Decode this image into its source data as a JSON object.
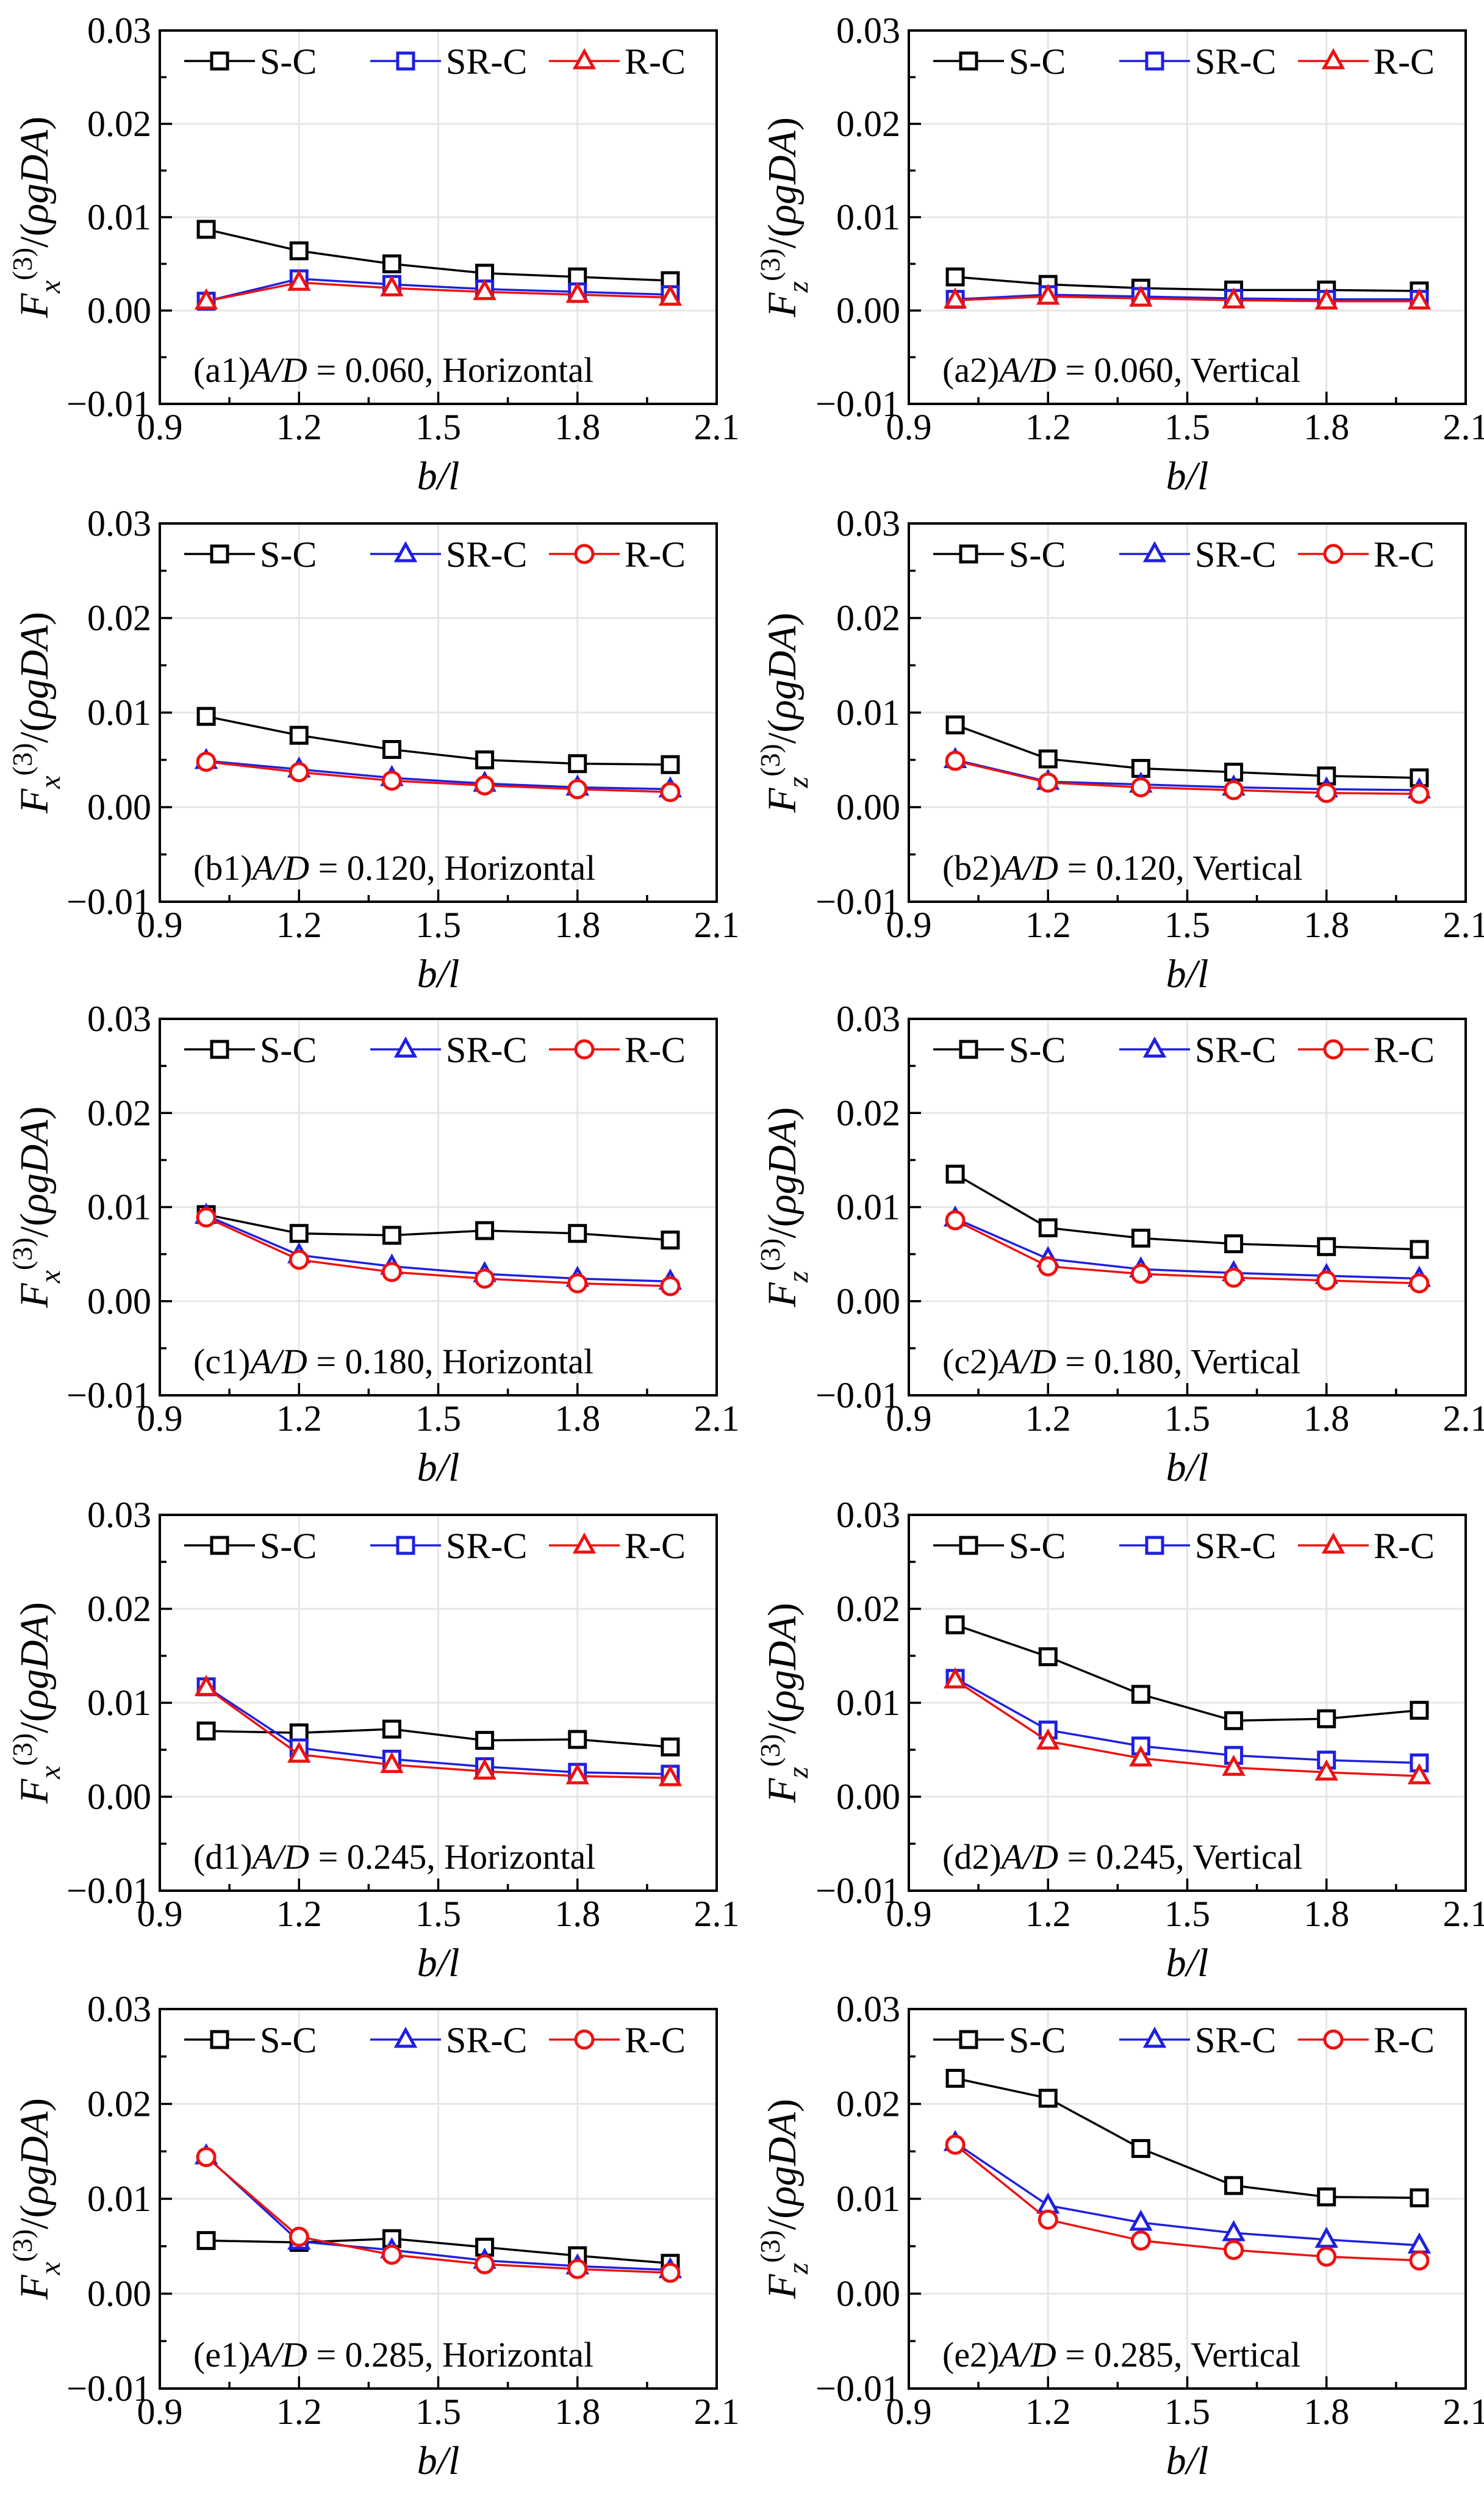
{
  "figure": {
    "x_axis_label": "b/l",
    "y_axis_label_fx": "Fx(3)/(ρgDA)",
    "y_axis_label_fz": "Fz(3)/(ρgDA)",
    "colors": {
      "S-C": "#000000",
      "SR-C": "#1f1fe0",
      "R-C": "#ee1111"
    }
  },
  "chart_data": [
    {
      "id": "a1",
      "type": "line",
      "component": "x",
      "panel_label": "(a1)",
      "amplitude_ratio": "A/D = 0.060",
      "direction": "Horizontal",
      "categories": [
        1.0,
        1.2,
        1.4,
        1.6,
        1.8,
        2.0
      ],
      "xlim": [
        0.9,
        2.1
      ],
      "xticks": [
        "0.9",
        "1.2",
        "1.5",
        "1.8",
        "2.1"
      ],
      "ylim": [
        -0.01,
        0.03
      ],
      "yticks": [
        "−0.01",
        "0.00",
        "0.01",
        "0.02",
        "0.03"
      ],
      "series": [
        {
          "name": "S-C",
          "marker": "square",
          "values": [
            0.0087,
            0.0064,
            0.005,
            0.004,
            0.0036,
            0.0032
          ]
        },
        {
          "name": "SR-C",
          "marker": "square",
          "values": [
            0.001,
            0.0034,
            0.0028,
            0.0023,
            0.002,
            0.0017
          ]
        },
        {
          "name": "R-C",
          "marker": "triangle",
          "values": [
            0.001,
            0.003,
            0.0024,
            0.002,
            0.0017,
            0.0014
          ]
        }
      ]
    },
    {
      "id": "a2",
      "type": "line",
      "component": "z",
      "panel_label": "(a2)",
      "amplitude_ratio": "A/D = 0.060",
      "direction": "Vertical",
      "categories": [
        1.0,
        1.2,
        1.4,
        1.6,
        1.8,
        2.0
      ],
      "xlim": [
        0.9,
        2.1
      ],
      "xticks": [
        "0.9",
        "1.2",
        "1.5",
        "1.8",
        "2.1"
      ],
      "ylim": [
        -0.01,
        0.03
      ],
      "yticks": [
        "−0.01",
        "0.00",
        "0.01",
        "0.02",
        "0.03"
      ],
      "series": [
        {
          "name": "S-C",
          "marker": "square",
          "values": [
            0.0036,
            0.0028,
            0.0024,
            0.0022,
            0.0022,
            0.0021
          ]
        },
        {
          "name": "SR-C",
          "marker": "square",
          "values": [
            0.0012,
            0.0017,
            0.0015,
            0.0013,
            0.0012,
            0.0012
          ]
        },
        {
          "name": "R-C",
          "marker": "triangle",
          "values": [
            0.0011,
            0.0015,
            0.0013,
            0.0011,
            0.001,
            0.001
          ]
        }
      ]
    },
    {
      "id": "b1",
      "type": "line",
      "component": "x",
      "panel_label": "(b1)",
      "amplitude_ratio": "A/D = 0.120",
      "direction": "Horizontal",
      "categories": [
        1.0,
        1.2,
        1.4,
        1.6,
        1.8,
        2.0
      ],
      "xlim": [
        0.9,
        2.1
      ],
      "xticks": [
        "0.9",
        "1.2",
        "1.5",
        "1.8",
        "2.1"
      ],
      "ylim": [
        -0.01,
        0.03
      ],
      "yticks": [
        "−0.01",
        "0.00",
        "0.01",
        "0.02",
        "0.03"
      ],
      "series": [
        {
          "name": "S-C",
          "marker": "square",
          "values": [
            0.0096,
            0.0076,
            0.0061,
            0.005,
            0.0046,
            0.0045
          ]
        },
        {
          "name": "SR-C",
          "marker": "triangle",
          "values": [
            0.0049,
            0.004,
            0.0031,
            0.0025,
            0.0021,
            0.0019
          ]
        },
        {
          "name": "R-C",
          "marker": "circle",
          "values": [
            0.0048,
            0.0037,
            0.0028,
            0.0023,
            0.0019,
            0.0016
          ]
        }
      ]
    },
    {
      "id": "b2",
      "type": "line",
      "component": "z",
      "panel_label": "(b2)",
      "amplitude_ratio": "A/D = 0.120",
      "direction": "Vertical",
      "categories": [
        1.0,
        1.2,
        1.4,
        1.6,
        1.8,
        2.0
      ],
      "xlim": [
        0.9,
        2.1
      ],
      "xticks": [
        "0.9",
        "1.2",
        "1.5",
        "1.8",
        "2.1"
      ],
      "ylim": [
        -0.01,
        0.03
      ],
      "yticks": [
        "−0.01",
        "0.00",
        "0.01",
        "0.02",
        "0.03"
      ],
      "series": [
        {
          "name": "S-C",
          "marker": "square",
          "values": [
            0.0087,
            0.0051,
            0.0041,
            0.0037,
            0.0033,
            0.0031
          ]
        },
        {
          "name": "SR-C",
          "marker": "triangle",
          "values": [
            0.005,
            0.0027,
            0.0024,
            0.0021,
            0.0019,
            0.0018
          ]
        },
        {
          "name": "R-C",
          "marker": "circle",
          "values": [
            0.0049,
            0.0026,
            0.0021,
            0.0018,
            0.0015,
            0.0014
          ]
        }
      ]
    },
    {
      "id": "c1",
      "type": "line",
      "component": "x",
      "panel_label": "(c1)",
      "amplitude_ratio": "A/D = 0.180",
      "direction": "Horizontal",
      "categories": [
        1.0,
        1.2,
        1.4,
        1.6,
        1.8,
        2.0
      ],
      "xlim": [
        0.9,
        2.1
      ],
      "xticks": [
        "0.9",
        "1.2",
        "1.5",
        "1.8",
        "2.1"
      ],
      "ylim": [
        -0.01,
        0.03
      ],
      "yticks": [
        "−0.01",
        "0.00",
        "0.01",
        "0.02",
        "0.03"
      ],
      "series": [
        {
          "name": "S-C",
          "marker": "square",
          "values": [
            0.0092,
            0.0072,
            0.007,
            0.0075,
            0.0072,
            0.0065
          ]
        },
        {
          "name": "SR-C",
          "marker": "triangle",
          "values": [
            0.0091,
            0.0049,
            0.0037,
            0.0029,
            0.0024,
            0.0021
          ]
        },
        {
          "name": "R-C",
          "marker": "circle",
          "values": [
            0.0089,
            0.0044,
            0.0031,
            0.0024,
            0.0019,
            0.0016
          ]
        }
      ]
    },
    {
      "id": "c2",
      "type": "line",
      "component": "z",
      "panel_label": "(c2)",
      "amplitude_ratio": "A/D = 0.180",
      "direction": "Vertical",
      "categories": [
        1.0,
        1.2,
        1.4,
        1.6,
        1.8,
        2.0
      ],
      "xlim": [
        0.9,
        2.1
      ],
      "xticks": [
        "0.9",
        "1.2",
        "1.5",
        "1.8",
        "2.1"
      ],
      "ylim": [
        -0.01,
        0.03
      ],
      "yticks": [
        "−0.01",
        "0.00",
        "0.01",
        "0.02",
        "0.03"
      ],
      "series": [
        {
          "name": "S-C",
          "marker": "square",
          "values": [
            0.0135,
            0.0078,
            0.0067,
            0.0061,
            0.0058,
            0.0055
          ]
        },
        {
          "name": "SR-C",
          "marker": "triangle",
          "values": [
            0.0088,
            0.0045,
            0.0034,
            0.003,
            0.0027,
            0.0024
          ]
        },
        {
          "name": "R-C",
          "marker": "circle",
          "values": [
            0.0086,
            0.0037,
            0.0029,
            0.0025,
            0.0022,
            0.0019
          ]
        }
      ]
    },
    {
      "id": "d1",
      "type": "line",
      "component": "x",
      "panel_label": "(d1)",
      "amplitude_ratio": "A/D = 0.245",
      "direction": "Horizontal",
      "categories": [
        1.0,
        1.2,
        1.4,
        1.6,
        1.8,
        2.0
      ],
      "xlim": [
        0.9,
        2.1
      ],
      "xticks": [
        "0.9",
        "1.2",
        "1.5",
        "1.8",
        "2.1"
      ],
      "ylim": [
        -0.01,
        0.03
      ],
      "yticks": [
        "−0.01",
        "0.00",
        "0.01",
        "0.02",
        "0.03"
      ],
      "series": [
        {
          "name": "S-C",
          "marker": "square",
          "values": [
            0.007,
            0.0068,
            0.0072,
            0.006,
            0.0061,
            0.0053
          ]
        },
        {
          "name": "SR-C",
          "marker": "square",
          "values": [
            0.0117,
            0.0052,
            0.004,
            0.0032,
            0.0026,
            0.0024
          ]
        },
        {
          "name": "R-C",
          "marker": "triangle",
          "values": [
            0.0116,
            0.0045,
            0.0034,
            0.0027,
            0.0022,
            0.002
          ]
        }
      ]
    },
    {
      "id": "d2",
      "type": "line",
      "component": "z",
      "panel_label": "(d2)",
      "amplitude_ratio": "A/D = 0.245",
      "direction": "Vertical",
      "categories": [
        1.0,
        1.2,
        1.4,
        1.6,
        1.8,
        2.0
      ],
      "xlim": [
        0.9,
        2.1
      ],
      "xticks": [
        "0.9",
        "1.2",
        "1.5",
        "1.8",
        "2.1"
      ],
      "ylim": [
        -0.01,
        0.03
      ],
      "yticks": [
        "−0.01",
        "0.00",
        "0.01",
        "0.02",
        "0.03"
      ],
      "series": [
        {
          "name": "S-C",
          "marker": "square",
          "values": [
            0.0183,
            0.0149,
            0.0109,
            0.0081,
            0.0083,
            0.0092
          ]
        },
        {
          "name": "SR-C",
          "marker": "square",
          "values": [
            0.0126,
            0.0071,
            0.0054,
            0.0044,
            0.0039,
            0.0036
          ]
        },
        {
          "name": "R-C",
          "marker": "triangle",
          "values": [
            0.0124,
            0.0059,
            0.0041,
            0.0031,
            0.0026,
            0.0022
          ]
        }
      ]
    },
    {
      "id": "e1",
      "type": "line",
      "component": "x",
      "panel_label": "(e1)",
      "amplitude_ratio": "A/D = 0.285",
      "direction": "Horizontal",
      "categories": [
        1.0,
        1.2,
        1.4,
        1.6,
        1.8,
        2.0
      ],
      "xlim": [
        0.9,
        2.1
      ],
      "xticks": [
        "0.9",
        "1.2",
        "1.5",
        "1.8",
        "2.1"
      ],
      "ylim": [
        -0.01,
        0.03
      ],
      "yticks": [
        "−0.01",
        "0.00",
        "0.01",
        "0.02",
        "0.03"
      ],
      "series": [
        {
          "name": "S-C",
          "marker": "square",
          "values": [
            0.0056,
            0.0054,
            0.0058,
            0.0049,
            0.004,
            0.0032
          ]
        },
        {
          "name": "SR-C",
          "marker": "triangle",
          "values": [
            0.0145,
            0.0055,
            0.0046,
            0.0035,
            0.0029,
            0.0025
          ]
        },
        {
          "name": "R-C",
          "marker": "circle",
          "values": [
            0.0144,
            0.006,
            0.0041,
            0.0031,
            0.0026,
            0.0022
          ]
        }
      ]
    },
    {
      "id": "e2",
      "type": "line",
      "component": "z",
      "panel_label": "(e2)",
      "amplitude_ratio": "A/D = 0.285",
      "direction": "Vertical",
      "categories": [
        1.0,
        1.2,
        1.4,
        1.6,
        1.8,
        2.0
      ],
      "xlim": [
        0.9,
        2.1
      ],
      "xticks": [
        "0.9",
        "1.2",
        "1.5",
        "1.8",
        "2.1"
      ],
      "ylim": [
        -0.01,
        0.03
      ],
      "yticks": [
        "−0.01",
        "0.00",
        "0.01",
        "0.02",
        "0.03"
      ],
      "series": [
        {
          "name": "S-C",
          "marker": "square",
          "values": [
            0.0227,
            0.0206,
            0.0153,
            0.0114,
            0.0102,
            0.0101
          ]
        },
        {
          "name": "SR-C",
          "marker": "triangle",
          "values": [
            0.0159,
            0.0093,
            0.0075,
            0.0064,
            0.0057,
            0.0051
          ]
        },
        {
          "name": "R-C",
          "marker": "circle",
          "values": [
            0.0157,
            0.0078,
            0.0056,
            0.0046,
            0.0039,
            0.0035
          ]
        }
      ]
    }
  ]
}
